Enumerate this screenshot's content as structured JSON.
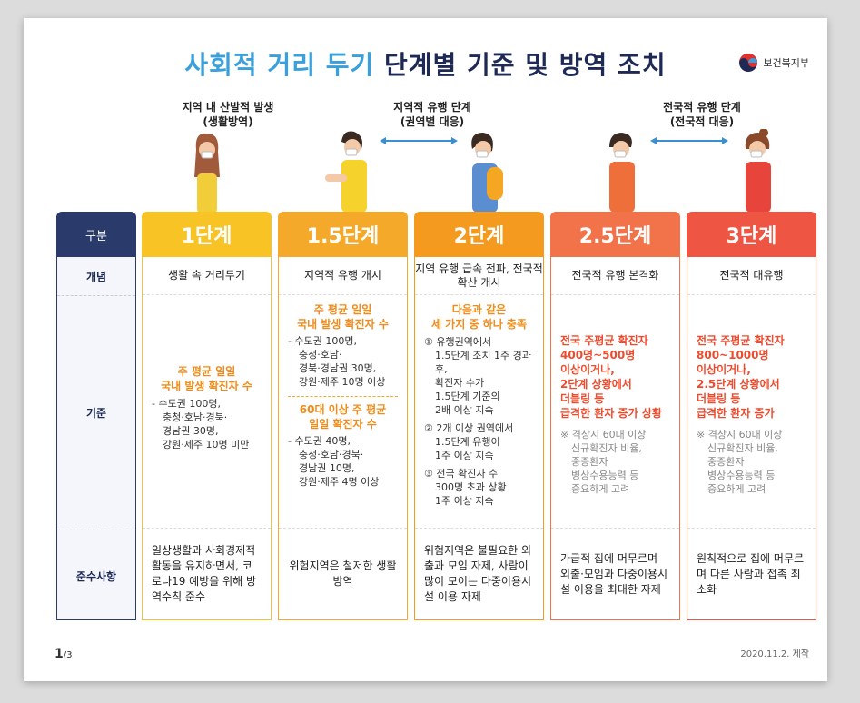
{
  "title_part1": "사회적 거리 두기",
  "title_part2": "단계별 기준 및 방역 조치",
  "logo": "보건복지부",
  "captions": {
    "c1_line1": "지역 내 산발적 발생",
    "c1_line2": "(생활방역)",
    "c2_line1": "지역적 유행 단계",
    "c2_line2": "(권역별 대응)",
    "c3_line1": "전국적 유행 단계",
    "c3_line2": "(전국적 대응)"
  },
  "row_labels": {
    "header": "구분",
    "concept": "개념",
    "criteria": "기준",
    "comply": "준수사항"
  },
  "stages": [
    {
      "name": "1단계",
      "color": "#f7c325",
      "concept": "생활 속 거리두기",
      "comply": "일상생활과 사회경제적 활동을 유지하면서, 코로나19 예방을 위해 방역수칙 준수"
    },
    {
      "name": "1.5단계",
      "color": "#f5a92a",
      "concept": "지역적 유행 개시",
      "comply": "위험지역은 철저한 생활방역"
    },
    {
      "name": "2단계",
      "color": "#f39a1f",
      "concept": "지역 유행 급속 전파, 전국적 확산 개시",
      "comply": "위험지역은 불필요한 외출과 모임 자제, 사람이 많이 모이는 다중이용시설 이용 자제"
    },
    {
      "name": "2.5단계",
      "color": "#f2724a",
      "concept": "전국적 유행 본격화",
      "comply": "가급적 집에 머무르며 외출·모임과 다중이용시설 이용을 최대한 자제"
    },
    {
      "name": "3단계",
      "color": "#ee5543",
      "concept": "전국적 대유행",
      "comply": "원칙적으로 집에 머무르며 다른 사람과 접촉 최소화"
    }
  ],
  "criteria": {
    "s1_hl1": "주 평균 일일",
    "s1_hl2": "국내 발생 확진자 수",
    "s1_l1": "- 수도권 100명,",
    "s1_l2": "충청·호남·경북·",
    "s1_l3": "경남권 30명,",
    "s1_l4": "강원·제주 10명 미만",
    "s15_hl1": "주 평균 일일",
    "s15_hl2": "국내 발생 확진자 수",
    "s15_l1": "- 수도권 100명,",
    "s15_l2": "충청·호남·",
    "s15_l3": "경북·경남권 30명,",
    "s15_l4": "강원·제주 10명 이상",
    "s15_hl3": "60대 이상 주 평균",
    "s15_hl4": "일일 확진자 수",
    "s15_l5": "- 수도권 40명,",
    "s15_l6": "충청·호남·경북·",
    "s15_l7": "경남권 10명,",
    "s15_l8": "강원·제주 4명 이상",
    "s2_hl1": "다음과 같은",
    "s2_hl2": "세 가지 중 하나 충족",
    "s2_a1": "① 유행권역에서",
    "s2_a2": "1.5단계 조치 1주 경과 후,",
    "s2_a3": "확진자 수가",
    "s2_a4": "1.5단계 기준의",
    "s2_a5": "2배 이상 지속",
    "s2_b1": "② 2개 이상 권역에서",
    "s2_b2": "1.5단계 유행이",
    "s2_b3": "1주 이상 지속",
    "s2_c1": "③ 전국 확진자 수",
    "s2_c2": "300명 초과 상황",
    "s2_c3": "1주 이상 지속",
    "s25_hl1": "전국 주평균 확진자",
    "s25_hl2": "400명~500명",
    "s25_hl3": "이상이거나,",
    "s25_hl4": "2단계 상황에서",
    "s25_hl5": "더블링 등",
    "s25_hl6": "급격한 환자 증가 상황",
    "s25_n1": "※ 격상시 60대 이상",
    "s25_n2": "신규확진자 비율,",
    "s25_n3": "중증환자",
    "s25_n4": "병상수용능력 등",
    "s25_n5": "중요하게 고려",
    "s3_hl1": "전국 주평균 확진자",
    "s3_hl2": "800~1000명",
    "s3_hl3": "이상이거나,",
    "s3_hl4": "2.5단계 상황에서",
    "s3_hl5": "더블링 등",
    "s3_hl6": "급격한 환자 증가",
    "s3_n1": "※ 격상시 60대 이상",
    "s3_n2": "신규확진자 비율,",
    "s3_n3": "중증환자",
    "s3_n4": "병상수용능력 등",
    "s3_n5": "중요하게 고려"
  },
  "page": "1",
  "page_total": "/3",
  "date": "2020.11.2. 제작"
}
